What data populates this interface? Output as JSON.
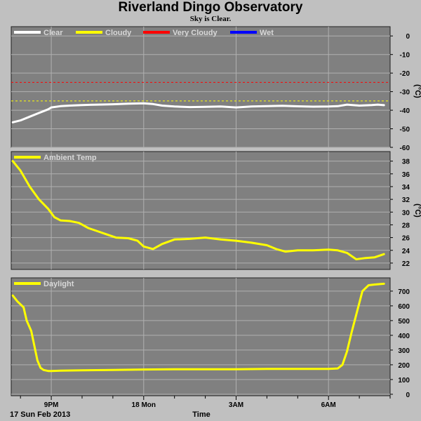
{
  "header": {
    "title": "Riverland Dingo Observatory",
    "subtitle": "Sky is Clear."
  },
  "footer": {
    "date_label": "17 Sun Feb 2013",
    "x_axis_title": "Time"
  },
  "colors": {
    "figure_bg": "#c0c0c0",
    "plot_bg": "#808080",
    "grid": "#b0b0b0",
    "clear": "#ffffff",
    "cloudy": "#ffff00",
    "very_cloudy": "#ff0000",
    "wet": "#0000ff"
  },
  "chart_data": [
    {
      "type": "line",
      "panel": "sky",
      "yunit": "(°C)",
      "ylim": [
        -60,
        5
      ],
      "yticks": [
        0,
        -10,
        -20,
        -30,
        -40,
        -50,
        -60
      ],
      "xticks": [
        "9PM",
        "18 Mon",
        "3AM",
        "6AM"
      ],
      "xtick_hours": [
        21,
        24,
        27,
        30
      ],
      "xlim": [
        19.7,
        32.0
      ],
      "grid": true,
      "legend": [
        {
          "name": "Clear",
          "color": "#ffffff"
        },
        {
          "name": "Cloudy",
          "color": "#ffff00"
        },
        {
          "name": "Very Cloudy",
          "color": "#ff0000"
        },
        {
          "name": "Wet",
          "color": "#0000ff"
        }
      ],
      "thresholds": [
        {
          "value": -25,
          "color": "#ff0000"
        },
        {
          "value": -35,
          "color": "#ffff00"
        }
      ],
      "series": [
        {
          "name": "Clear",
          "color": "#ffffff",
          "x": [
            19.75,
            20.0,
            20.3,
            20.6,
            20.9,
            21.0,
            21.3,
            21.6,
            22.0,
            22.5,
            23.0,
            23.5,
            24.0,
            24.3,
            24.6,
            25.0,
            25.5,
            26.0,
            26.5,
            27.0,
            27.5,
            28.0,
            28.5,
            29.0,
            29.5,
            30.0,
            30.3,
            30.6,
            31.0,
            31.4,
            31.6,
            31.8
          ],
          "values": [
            -46.5,
            -45.5,
            -43.5,
            -41.5,
            -39.5,
            -38.5,
            -37.8,
            -37.5,
            -37.2,
            -37.0,
            -36.8,
            -36.5,
            -36.3,
            -36.7,
            -37.5,
            -38.0,
            -38.3,
            -38.2,
            -38.0,
            -38.5,
            -38.0,
            -37.8,
            -37.6,
            -37.9,
            -38.1,
            -38.0,
            -37.8,
            -37.0,
            -37.5,
            -37.2,
            -37.0,
            -37.3
          ]
        }
      ]
    },
    {
      "type": "line",
      "panel": "ambient",
      "yunit": "(°C)",
      "ylim": [
        21,
        39.5
      ],
      "yticks": [
        38,
        36,
        34,
        32,
        30,
        28,
        26,
        24,
        22
      ],
      "xticks": [
        "9PM",
        "18 Mon",
        "3AM",
        "6AM"
      ],
      "xtick_hours": [
        21,
        24,
        27,
        30
      ],
      "xlim": [
        19.7,
        32.0
      ],
      "grid": true,
      "legend": [
        {
          "name": "Ambient Temp",
          "color": "#ffff00"
        }
      ],
      "series": [
        {
          "name": "Ambient Temp",
          "color": "#ffff00",
          "x": [
            19.75,
            20.0,
            20.3,
            20.6,
            20.9,
            21.1,
            21.3,
            21.6,
            21.9,
            22.2,
            22.5,
            22.8,
            23.1,
            23.5,
            23.8,
            24.0,
            24.3,
            24.6,
            25.0,
            25.5,
            26.0,
            26.5,
            27.0,
            27.5,
            28.0,
            28.3,
            28.6,
            29.0,
            29.5,
            30.0,
            30.3,
            30.6,
            30.9,
            31.2,
            31.5,
            31.8
          ],
          "values": [
            38.0,
            36.5,
            34.0,
            32.0,
            30.5,
            29.2,
            28.7,
            28.6,
            28.3,
            27.5,
            27.0,
            26.5,
            26.0,
            25.9,
            25.5,
            24.6,
            24.2,
            25.0,
            25.7,
            25.8,
            26.0,
            25.7,
            25.5,
            25.2,
            24.8,
            24.2,
            23.8,
            24.0,
            24.0,
            24.1,
            24.0,
            23.6,
            22.6,
            22.8,
            22.9,
            23.4
          ]
        }
      ]
    },
    {
      "type": "line",
      "panel": "daylight",
      "ylim": [
        -10,
        790
      ],
      "yticks": [
        700,
        600,
        500,
        400,
        300,
        200,
        100,
        0
      ],
      "xticks": [
        "9PM",
        "18 Mon",
        "3AM",
        "6AM"
      ],
      "xtick_hours": [
        21,
        24,
        27,
        30
      ],
      "xlim": [
        19.7,
        32.0
      ],
      "grid": true,
      "legend": [
        {
          "name": "Daylight",
          "color": "#ffff00"
        }
      ],
      "series": [
        {
          "name": "Daylight",
          "color": "#ffff00",
          "x": [
            19.75,
            19.9,
            20.1,
            20.2,
            20.35,
            20.45,
            20.55,
            20.65,
            20.75,
            20.9,
            21.0,
            21.3,
            22.0,
            23.0,
            24.0,
            25.0,
            26.0,
            27.0,
            28.0,
            29.0,
            29.7,
            30.0,
            30.3,
            30.45,
            30.6,
            30.75,
            30.9,
            31.0,
            31.1,
            31.3,
            31.5,
            31.8
          ],
          "values": [
            670,
            630,
            590,
            500,
            430,
            330,
            230,
            180,
            165,
            158,
            158,
            160,
            163,
            165,
            168,
            170,
            170,
            170,
            172,
            172,
            172,
            172,
            175,
            200,
            290,
            420,
            540,
            620,
            700,
            740,
            745,
            750
          ]
        }
      ]
    }
  ]
}
